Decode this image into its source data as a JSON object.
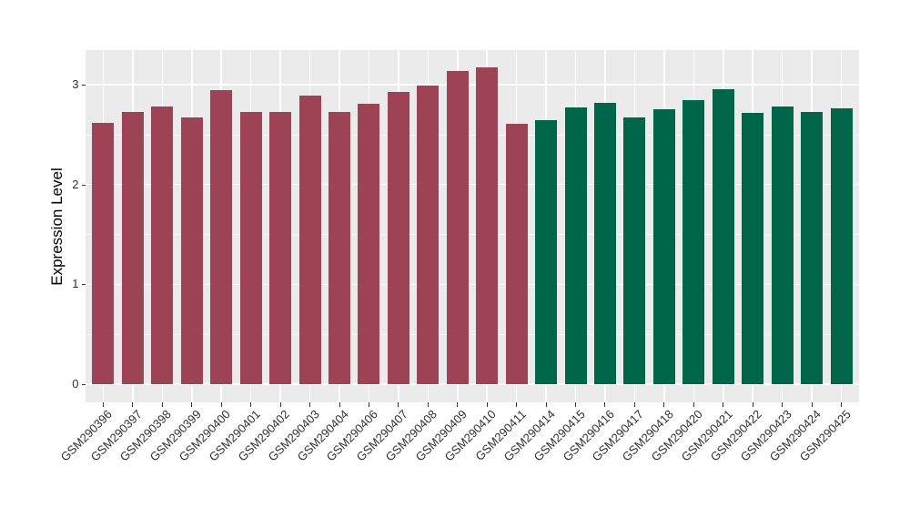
{
  "chart_data": {
    "type": "bar",
    "title": "",
    "xlabel": "",
    "ylabel": "Expression Level",
    "ylim": [
      0,
      3.34
    ],
    "yticks": [
      0,
      1,
      2,
      3
    ],
    "yticks_minor": [
      0.5,
      1.5,
      2.5
    ],
    "grid": "on",
    "legend_position": "none",
    "panel_bg": "#EBEBEB",
    "grid_color": "#FFFFFF",
    "tick_color": "#333333",
    "categories": [
      "GSM290396",
      "GSM290397",
      "GSM290398",
      "GSM290399",
      "GSM290400",
      "GSM290401",
      "GSM290402",
      "GSM290403",
      "GSM290404",
      "GSM290406",
      "GSM290407",
      "GSM290408",
      "GSM290409",
      "GSM290410",
      "GSM290411",
      "GSM290414",
      "GSM290415",
      "GSM290416",
      "GSM290417",
      "GSM290418",
      "GSM290420",
      "GSM290421",
      "GSM290422",
      "GSM290423",
      "GSM290424",
      "GSM290425"
    ],
    "values": [
      2.62,
      2.73,
      2.78,
      2.67,
      2.94,
      2.73,
      2.73,
      2.89,
      2.73,
      2.81,
      2.93,
      2.99,
      3.14,
      3.17,
      2.61,
      2.64,
      2.77,
      2.82,
      2.67,
      2.75,
      2.84,
      2.95,
      2.72,
      2.78,
      2.73,
      2.76
    ],
    "groups": [
      "A",
      "A",
      "A",
      "A",
      "A",
      "A",
      "A",
      "A",
      "A",
      "A",
      "A",
      "A",
      "A",
      "A",
      "A",
      "B",
      "B",
      "B",
      "B",
      "B",
      "B",
      "B",
      "B",
      "B",
      "B",
      "B"
    ],
    "group_colors": {
      "A": "#9E4255",
      "B": "#00664A"
    }
  }
}
